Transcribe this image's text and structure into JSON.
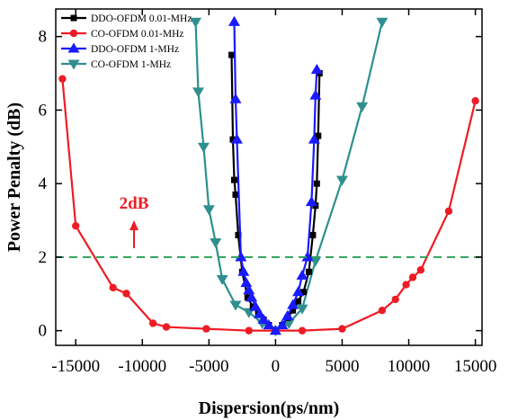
{
  "chart_data": {
    "type": "line",
    "title": "",
    "xlabel": "Dispersion(ps/nm)",
    "ylabel": "Power Penalty (dB)",
    "xlim": [
      -16500,
      15500
    ],
    "ylim": [
      -0.4,
      8.75
    ],
    "xticks": [
      -15000,
      -10000,
      -5000,
      0,
      5000,
      10000,
      15000
    ],
    "xtick_labels": [
      "-15000",
      "-10000",
      "-5000",
      "0",
      "5000",
      "10000",
      "15000"
    ],
    "yticks": [
      0,
      2,
      4,
      6,
      8
    ],
    "ytick_labels": [
      "0",
      "2",
      "4",
      "6",
      "8"
    ],
    "grid": false,
    "legend_position": "top-left",
    "threshold": {
      "y": 2,
      "color": "#2ca05a",
      "label": "2dB",
      "label_color": "#ee1c24"
    },
    "series": [
      {
        "name": "DDO-OFDM 0.01-MHz",
        "color": "#000000",
        "marker": "square",
        "x": [
          -3300,
          -3200,
          -3100,
          -3000,
          -2800,
          -2500,
          -2100,
          -1700,
          -1300,
          -900,
          -500,
          0,
          500,
          900,
          1300,
          1700,
          2100,
          2500,
          2800,
          3000,
          3100,
          3200,
          3300
        ],
        "y": [
          7.5,
          5.2,
          4.1,
          3.7,
          2.6,
          1.6,
          0.9,
          0.65,
          0.45,
          0.3,
          0.15,
          0.0,
          0.15,
          0.35,
          0.55,
          0.8,
          1.05,
          1.6,
          2.6,
          3.4,
          4.0,
          5.3,
          7.0
        ]
      },
      {
        "name": "CO-OFDM 0.01-MHz",
        "color": "#ee1c24",
        "marker": "circle",
        "x": [
          -16000,
          -15000,
          -12200,
          -11200,
          -9200,
          -8200,
          -5200,
          -2000,
          0,
          2000,
          5000,
          8000,
          9000,
          9800,
          10300,
          10900,
          13000,
          15000
        ],
        "y": [
          6.85,
          2.85,
          1.17,
          1.01,
          0.2,
          0.1,
          0.05,
          0.0,
          0.0,
          0.0,
          0.05,
          0.55,
          0.85,
          1.25,
          1.45,
          1.65,
          3.25,
          6.25
        ]
      },
      {
        "name": "DDO-OFDM 1-MHz",
        "color": "#1a1aff",
        "marker": "triangle-up",
        "x": [
          -3100,
          -3000,
          -2900,
          -2600,
          -2400,
          -2200,
          -2000,
          -1800,
          -1500,
          -1200,
          -900,
          -500,
          0,
          500,
          900,
          1300,
          1700,
          2000,
          2400,
          2700,
          2900,
          3000,
          3100
        ],
        "y": [
          8.4,
          6.3,
          5.2,
          2.0,
          1.6,
          1.3,
          1.1,
          0.9,
          0.65,
          0.45,
          0.3,
          0.15,
          0.0,
          0.15,
          0.4,
          0.7,
          1.05,
          1.5,
          2.0,
          3.5,
          5.2,
          6.4,
          7.1
        ]
      },
      {
        "name": "CO-OFDM 1-MHz",
        "color": "#2f8f8f",
        "marker": "triangle-down",
        "x": [
          -6000,
          -5800,
          -5400,
          -5000,
          -4500,
          -4000,
          -3000,
          -2000,
          -1000,
          0,
          1000,
          2000,
          3000,
          5000,
          6500,
          8000
        ],
        "y": [
          8.4,
          6.5,
          5.0,
          3.3,
          2.4,
          1.4,
          0.7,
          0.5,
          0.2,
          0.0,
          0.2,
          0.6,
          1.9,
          4.1,
          6.1,
          8.4
        ]
      }
    ]
  }
}
